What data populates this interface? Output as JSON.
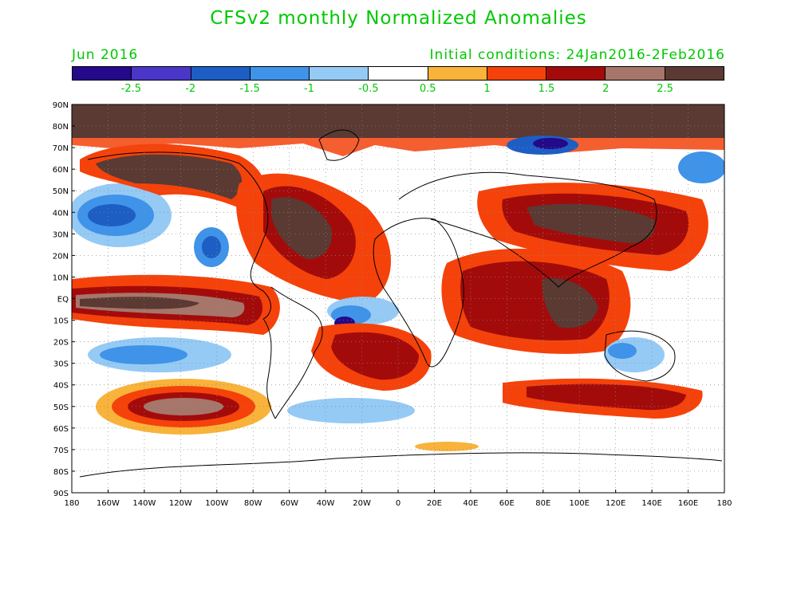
{
  "header": {
    "title": "CFSv2 monthly Normalized Anomalies",
    "month": "Jun 2016",
    "init": "Initial conditions: 24Jan2016-2Feb2016"
  },
  "colors": {
    "label_green": "#00c800",
    "bins": [
      "#24098a",
      "#4a36c8",
      "#1d5ec4",
      "#3f93e8",
      "#95caf5",
      "#ffffff",
      "#f9b33a",
      "#f5420a",
      "#a30b0b",
      "#a6766b",
      "#5a3a32"
    ]
  },
  "colorbar": {
    "levels": [
      "-2.5",
      "-2",
      "-1.5",
      "-1",
      "-0.5",
      "0.5",
      "1",
      "1.5",
      "2",
      "2.5"
    ]
  },
  "axes": {
    "lat_labels": [
      "90N",
      "80N",
      "70N",
      "60N",
      "50N",
      "40N",
      "30N",
      "20N",
      "10N",
      "EQ",
      "10S",
      "20S",
      "30S",
      "40S",
      "50S",
      "60S",
      "70S",
      "80S",
      "90S"
    ],
    "lon_labels": [
      "180",
      "160W",
      "140W",
      "120W",
      "100W",
      "80W",
      "60W",
      "40W",
      "20W",
      "0",
      "20E",
      "40E",
      "60E",
      "80E",
      "100E",
      "120E",
      "140E",
      "160E",
      "180"
    ]
  }
}
